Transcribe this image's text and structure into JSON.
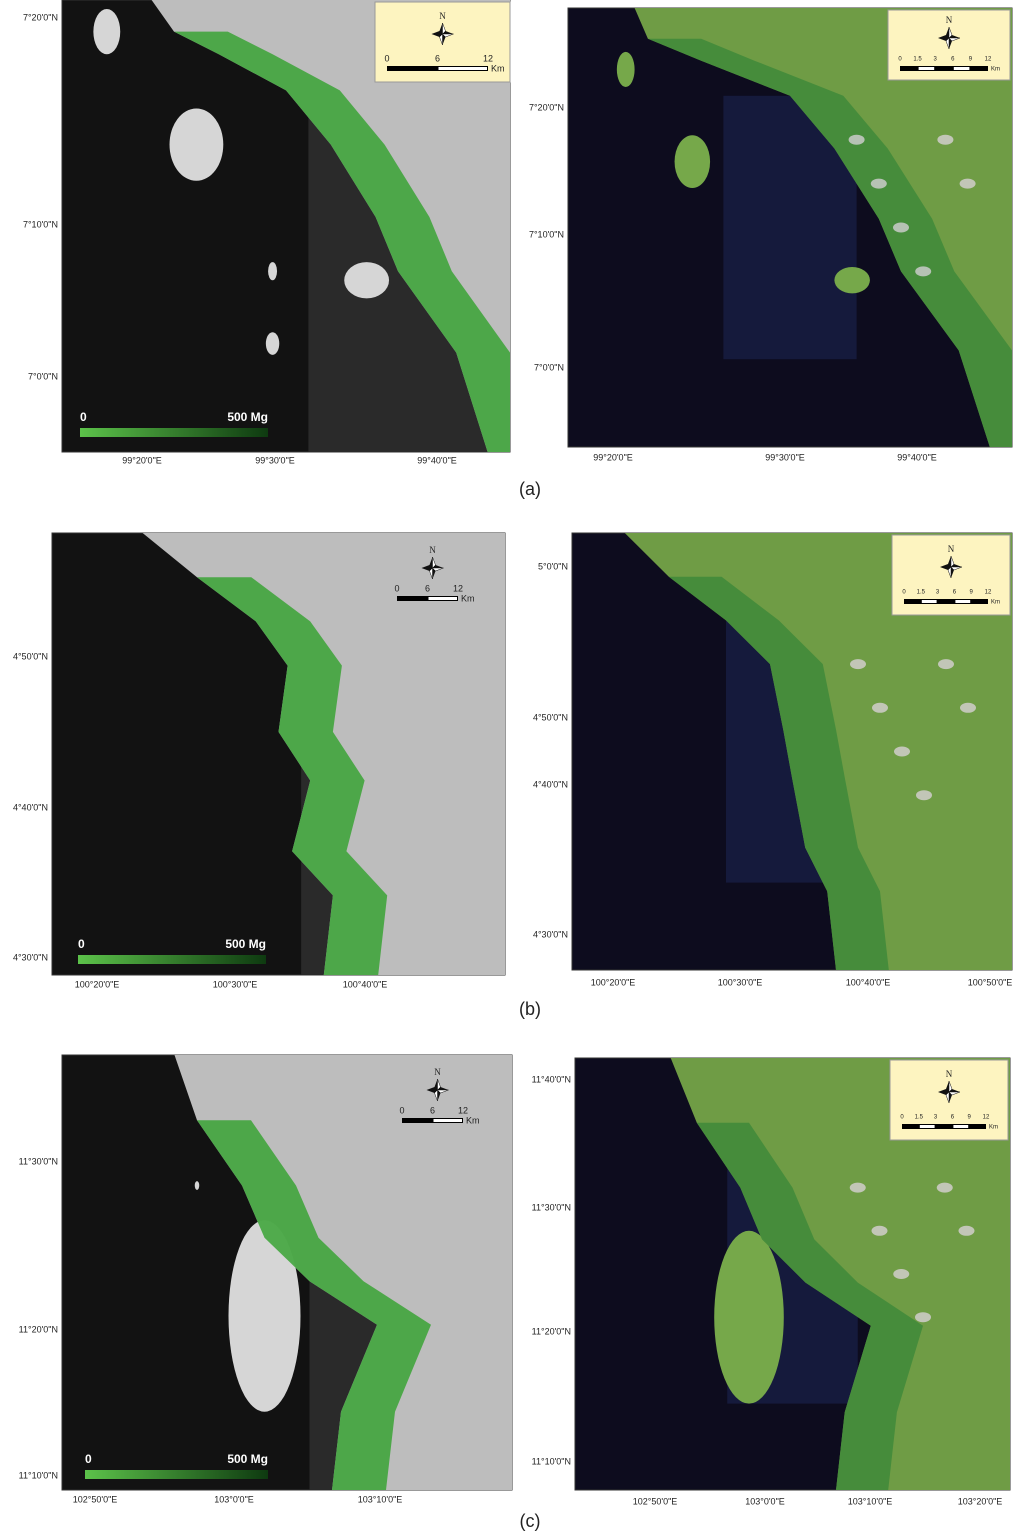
{
  "figure": {
    "panels": [
      {
        "label": "(a)",
        "left": {
          "lat_labels": [
            "7°20'0\"N",
            "7°10'0\"N",
            "7°0'0\"N"
          ],
          "lon_labels": [
            "99°20'0\"E",
            "99°30'0\"E",
            "99°40'0\"E"
          ],
          "legend": {
            "min": "0",
            "max": "500 Mg"
          },
          "north": "N",
          "scale_labels": [
            "0",
            "6",
            "12"
          ],
          "scale_unit": "Km"
        },
        "right": {
          "lat_labels": [
            "7°20'0\"N",
            "7°10'0\"N",
            "7°0'0\"N"
          ],
          "lon_labels": [
            "99°20'0\"E",
            "99°30'0\"E",
            "99°40'0\"E"
          ],
          "north": "N",
          "scale_labels": [
            "0",
            "1.5",
            "3",
            "6",
            "9",
            "12"
          ],
          "scale_unit": "Km"
        }
      },
      {
        "label": "(b)",
        "left": {
          "lat_labels": [
            "4°50'0\"N",
            "4°40'0\"N",
            "4°30'0\"N"
          ],
          "lon_labels": [
            "100°20'0\"E",
            "100°30'0\"E",
            "100°40'0\"E"
          ],
          "legend": {
            "min": "0",
            "max": "500 Mg"
          },
          "north": "N",
          "scale_labels": [
            "0",
            "6",
            "12"
          ],
          "scale_unit": "Km"
        },
        "right": {
          "lat_labels": [
            "5°0'0\"N",
            "4°50'0\"N",
            "4°40'0\"N",
            "4°30'0\"N"
          ],
          "lon_labels": [
            "100°20'0\"E",
            "100°30'0\"E",
            "100°40'0\"E",
            "100°50'0\"E"
          ],
          "north": "N",
          "scale_labels": [
            "0",
            "1.5",
            "3",
            "6",
            "9",
            "12"
          ],
          "scale_unit": "Km"
        }
      },
      {
        "label": "(c)",
        "left": {
          "lat_labels": [
            "11°30'0\"N",
            "11°20'0\"N",
            "11°10'0\"N"
          ],
          "lon_labels": [
            "102°50'0\"E",
            "103°0'0\"E",
            "103°10'0\"E"
          ],
          "legend": {
            "min": "0",
            "max": "500 Mg"
          },
          "north": "N",
          "scale_labels": [
            "0",
            "6",
            "12"
          ],
          "scale_unit": "Km"
        },
        "right": {
          "lat_labels": [
            "11°40'0\"N",
            "11°30'0\"N",
            "11°20'0\"N",
            "11°10'0\"N"
          ],
          "lon_labels": [
            "102°50'0\"E",
            "103°0'0\"E",
            "103°10'0\"E",
            "103°20'0\"E"
          ],
          "north": "N",
          "scale_labels": [
            "0",
            "1.5",
            "3",
            "6",
            "9",
            "12"
          ],
          "scale_unit": "Km"
        }
      }
    ]
  }
}
